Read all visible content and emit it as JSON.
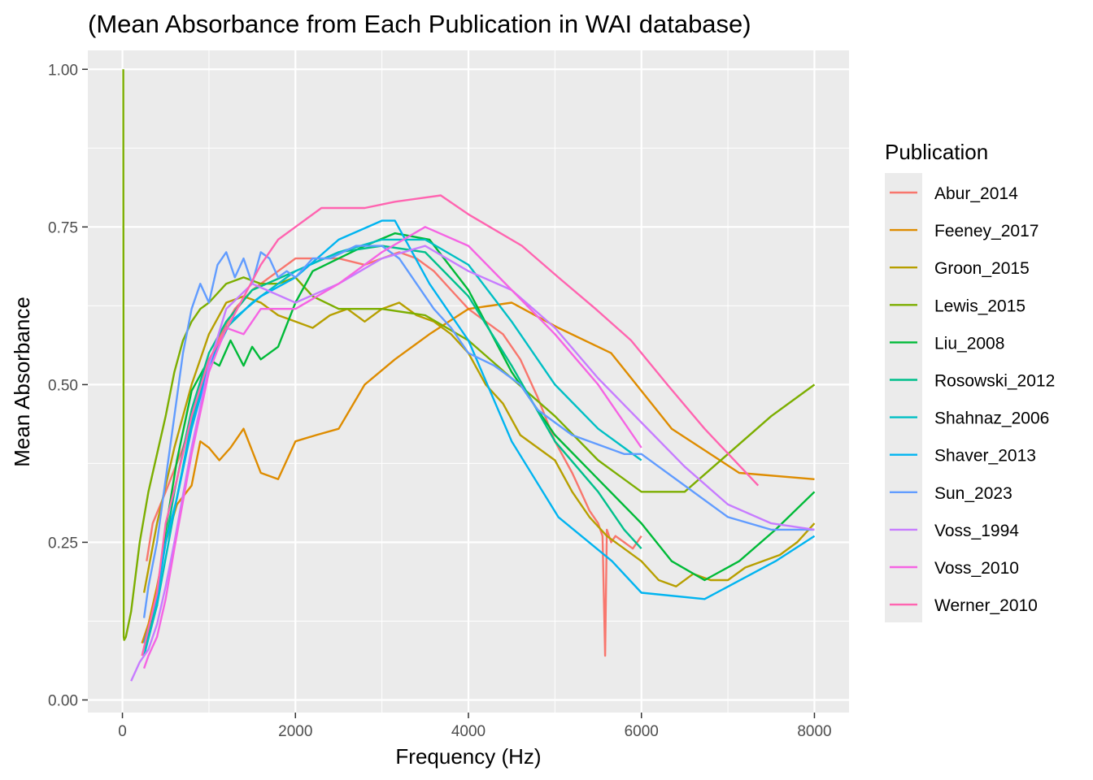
{
  "chart_data": {
    "type": "line",
    "title": "(Mean Absorbance from Each Publication in WAI database)",
    "xlabel": "Frequency (Hz)",
    "ylabel": "Mean Absorbance",
    "xlim": [
      -400,
      8400
    ],
    "ylim": [
      -0.02,
      1.03
    ],
    "xticks": [
      0,
      2000,
      4000,
      6000,
      8000
    ],
    "xtick_labels": [
      "0",
      "2000",
      "4000",
      "6000",
      "8000"
    ],
    "yticks": [
      0,
      0.25,
      0.5,
      0.75,
      1.0
    ],
    "ytick_labels": [
      "0.00",
      "0.25",
      "0.50",
      "0.75",
      "1.00"
    ],
    "grid": true,
    "legend_title": "Publication",
    "legend_position": "right",
    "series": [
      {
        "name": "Abur_2014",
        "color": "#F8766D",
        "x": [
          280,
          350,
          500,
          700,
          900,
          1100,
          1300,
          1500,
          1800,
          2000,
          2200,
          2500,
          2800,
          3000,
          3200,
          3400,
          3600,
          3800,
          4000,
          4200,
          4400,
          4600,
          4800,
          5000,
          5200,
          5300,
          5400,
          5500,
          5550,
          5580,
          5600,
          5650,
          5700,
          5800,
          5900,
          6000
        ],
        "y": [
          0.22,
          0.28,
          0.33,
          0.4,
          0.49,
          0.57,
          0.62,
          0.65,
          0.68,
          0.7,
          0.7,
          0.7,
          0.69,
          0.7,
          0.71,
          0.7,
          0.68,
          0.65,
          0.62,
          0.6,
          0.58,
          0.54,
          0.48,
          0.41,
          0.36,
          0.33,
          0.3,
          0.28,
          0.26,
          0.07,
          0.27,
          0.25,
          0.26,
          0.25,
          0.24,
          0.26
        ]
      },
      {
        "name": "Feeney_2017",
        "color": "#DE8C00",
        "x": [
          226,
          300,
          400,
          500,
          630,
          800,
          900,
          1000,
          1120,
          1250,
          1400,
          1600,
          1800,
          2000,
          2240,
          2500,
          2800,
          3150,
          3550,
          4000,
          4500,
          5040,
          5650,
          6350,
          7130,
          8000
        ],
        "y": [
          0.09,
          0.12,
          0.18,
          0.25,
          0.31,
          0.34,
          0.41,
          0.4,
          0.38,
          0.4,
          0.43,
          0.36,
          0.35,
          0.41,
          0.42,
          0.43,
          0.5,
          0.54,
          0.58,
          0.62,
          0.63,
          0.59,
          0.55,
          0.43,
          0.36,
          0.35
        ]
      },
      {
        "name": "Groon_2015",
        "color": "#B79F00",
        "x": [
          250,
          400,
          600,
          800,
          1000,
          1200,
          1400,
          1600,
          1800,
          2000,
          2200,
          2400,
          2600,
          2800,
          3000,
          3200,
          3400,
          3600,
          3800,
          4000,
          4200,
          4400,
          4600,
          4800,
          5000,
          5200,
          5400,
          5600,
          5800,
          6000,
          6200,
          6400,
          6600,
          6800,
          7000,
          7200,
          7400,
          7600,
          7800,
          8000
        ],
        "y": [
          0.17,
          0.28,
          0.4,
          0.5,
          0.58,
          0.63,
          0.64,
          0.63,
          0.61,
          0.6,
          0.59,
          0.61,
          0.62,
          0.6,
          0.62,
          0.63,
          0.61,
          0.6,
          0.58,
          0.55,
          0.5,
          0.47,
          0.42,
          0.4,
          0.38,
          0.33,
          0.29,
          0.26,
          0.24,
          0.22,
          0.19,
          0.18,
          0.2,
          0.19,
          0.19,
          0.21,
          0.22,
          0.23,
          0.25,
          0.28
        ]
      },
      {
        "name": "Lewis_2015",
        "color": "#7CAE00",
        "x": [
          10,
          15,
          20,
          40,
          100,
          200,
          300,
          400,
          500,
          600,
          700,
          800,
          900,
          1000,
          1200,
          1400,
          1600,
          1800,
          2000,
          2200,
          2500,
          3000,
          3500,
          4000,
          4500,
          5000,
          5500,
          6000,
          6500,
          7000,
          7500,
          8000
        ],
        "y": [
          1.0,
          0.1,
          0.095,
          0.1,
          0.14,
          0.25,
          0.33,
          0.39,
          0.45,
          0.52,
          0.57,
          0.6,
          0.62,
          0.63,
          0.66,
          0.67,
          0.66,
          0.66,
          0.67,
          0.64,
          0.62,
          0.62,
          0.61,
          0.57,
          0.51,
          0.45,
          0.38,
          0.33,
          0.33,
          0.39,
          0.45,
          0.5
        ]
      },
      {
        "name": "Liu_2008",
        "color": "#00BA38",
        "x": [
          250,
          400,
          500,
          630,
          800,
          1000,
          1120,
          1250,
          1400,
          1500,
          1600,
          1800,
          2000,
          2200,
          2500,
          2800,
          3150,
          3550,
          4000,
          4500,
          5000,
          5500,
          6000,
          6350,
          6730,
          7130,
          7550,
          8000
        ],
        "y": [
          0.08,
          0.15,
          0.27,
          0.38,
          0.49,
          0.54,
          0.53,
          0.57,
          0.53,
          0.56,
          0.54,
          0.56,
          0.63,
          0.68,
          0.7,
          0.72,
          0.74,
          0.73,
          0.65,
          0.52,
          0.42,
          0.35,
          0.28,
          0.22,
          0.19,
          0.22,
          0.27,
          0.33
        ]
      },
      {
        "name": "Rosowski_2012",
        "color": "#00C08B",
        "x": [
          250,
          400,
          600,
          800,
          1000,
          1200,
          1500,
          2000,
          2500,
          3000,
          3500,
          4000,
          4500,
          5000,
          5500,
          5800,
          6000
        ],
        "y": [
          0.08,
          0.17,
          0.33,
          0.46,
          0.55,
          0.6,
          0.65,
          0.68,
          0.71,
          0.72,
          0.71,
          0.64,
          0.53,
          0.41,
          0.33,
          0.27,
          0.24
        ]
      },
      {
        "name": "Shahnaz_2006",
        "color": "#00BFC4",
        "x": [
          250,
          400,
          600,
          800,
          1000,
          1200,
          1500,
          1800,
          2000,
          2500,
          3000,
          3500,
          4000,
          4500,
          5000,
          5500,
          6000
        ],
        "y": [
          0.07,
          0.15,
          0.3,
          0.44,
          0.53,
          0.59,
          0.63,
          0.66,
          0.68,
          0.71,
          0.73,
          0.73,
          0.69,
          0.6,
          0.5,
          0.43,
          0.38
        ]
      },
      {
        "name": "Shaver_2013",
        "color": "#00B4F0",
        "x": [
          250,
          400,
          500,
          630,
          800,
          1000,
          1250,
          1600,
          2000,
          2500,
          3000,
          3150,
          3550,
          4000,
          4500,
          5040,
          5660,
          6000,
          6730,
          7550,
          8000
        ],
        "y": [
          0.09,
          0.16,
          0.25,
          0.32,
          0.43,
          0.53,
          0.6,
          0.64,
          0.67,
          0.73,
          0.76,
          0.76,
          0.66,
          0.57,
          0.41,
          0.29,
          0.22,
          0.17,
          0.16,
          0.22,
          0.26
        ]
      },
      {
        "name": "Sun_2023",
        "color": "#619CFF",
        "x": [
          250,
          300,
          400,
          500,
          600,
          700,
          800,
          900,
          1000,
          1100,
          1200,
          1300,
          1400,
          1500,
          1600,
          1700,
          1800,
          1900,
          2000,
          2200,
          2400,
          2700,
          3000,
          3200,
          3400,
          3600,
          3800,
          4000,
          4300,
          4600,
          4800,
          5000,
          5200,
          5400,
          5600,
          5800,
          6000,
          6500,
          7000,
          7500,
          8000
        ],
        "y": [
          0.13,
          0.18,
          0.25,
          0.35,
          0.45,
          0.55,
          0.62,
          0.66,
          0.63,
          0.69,
          0.71,
          0.67,
          0.7,
          0.66,
          0.71,
          0.7,
          0.67,
          0.68,
          0.67,
          0.7,
          0.7,
          0.72,
          0.72,
          0.7,
          0.66,
          0.62,
          0.59,
          0.55,
          0.53,
          0.5,
          0.46,
          0.44,
          0.42,
          0.41,
          0.4,
          0.39,
          0.39,
          0.34,
          0.29,
          0.27,
          0.27
        ]
      },
      {
        "name": "Voss_1994",
        "color": "#C77CFF",
        "x": [
          100,
          200,
          300,
          400,
          500,
          600,
          800,
          1000,
          1200,
          1500,
          2000,
          2500,
          3000,
          3500,
          4000,
          4500,
          5000,
          5500,
          6000,
          6500,
          7000,
          7500,
          8000
        ],
        "y": [
          0.03,
          0.06,
          0.08,
          0.12,
          0.18,
          0.25,
          0.4,
          0.53,
          0.62,
          0.66,
          0.63,
          0.66,
          0.7,
          0.72,
          0.68,
          0.65,
          0.59,
          0.51,
          0.44,
          0.37,
          0.31,
          0.28,
          0.27
        ]
      },
      {
        "name": "Voss_2010",
        "color": "#F564E3",
        "x": [
          250,
          300,
          400,
          500,
          600,
          800,
          1000,
          1200,
          1400,
          1600,
          1800,
          2000,
          2500,
          3000,
          3500,
          4000,
          4500,
          5000,
          5500,
          6000
        ],
        "y": [
          0.05,
          0.07,
          0.1,
          0.16,
          0.24,
          0.39,
          0.52,
          0.59,
          0.58,
          0.62,
          0.62,
          0.62,
          0.66,
          0.71,
          0.75,
          0.72,
          0.65,
          0.58,
          0.5,
          0.4
        ]
      },
      {
        "name": "Werner_2010",
        "color": "#FF64B0",
        "x": [
          226,
          400,
          500,
          630,
          800,
          1000,
          1250,
          1600,
          1800,
          2000,
          2300,
          2800,
          3150,
          3680,
          4000,
          4620,
          5040,
          5470,
          5880,
          6300,
          6730,
          7350
        ],
        "y": [
          0.07,
          0.17,
          0.28,
          0.35,
          0.45,
          0.54,
          0.6,
          0.69,
          0.73,
          0.75,
          0.78,
          0.78,
          0.79,
          0.8,
          0.77,
          0.72,
          0.67,
          0.62,
          0.57,
          0.5,
          0.43,
          0.34
        ]
      }
    ]
  }
}
